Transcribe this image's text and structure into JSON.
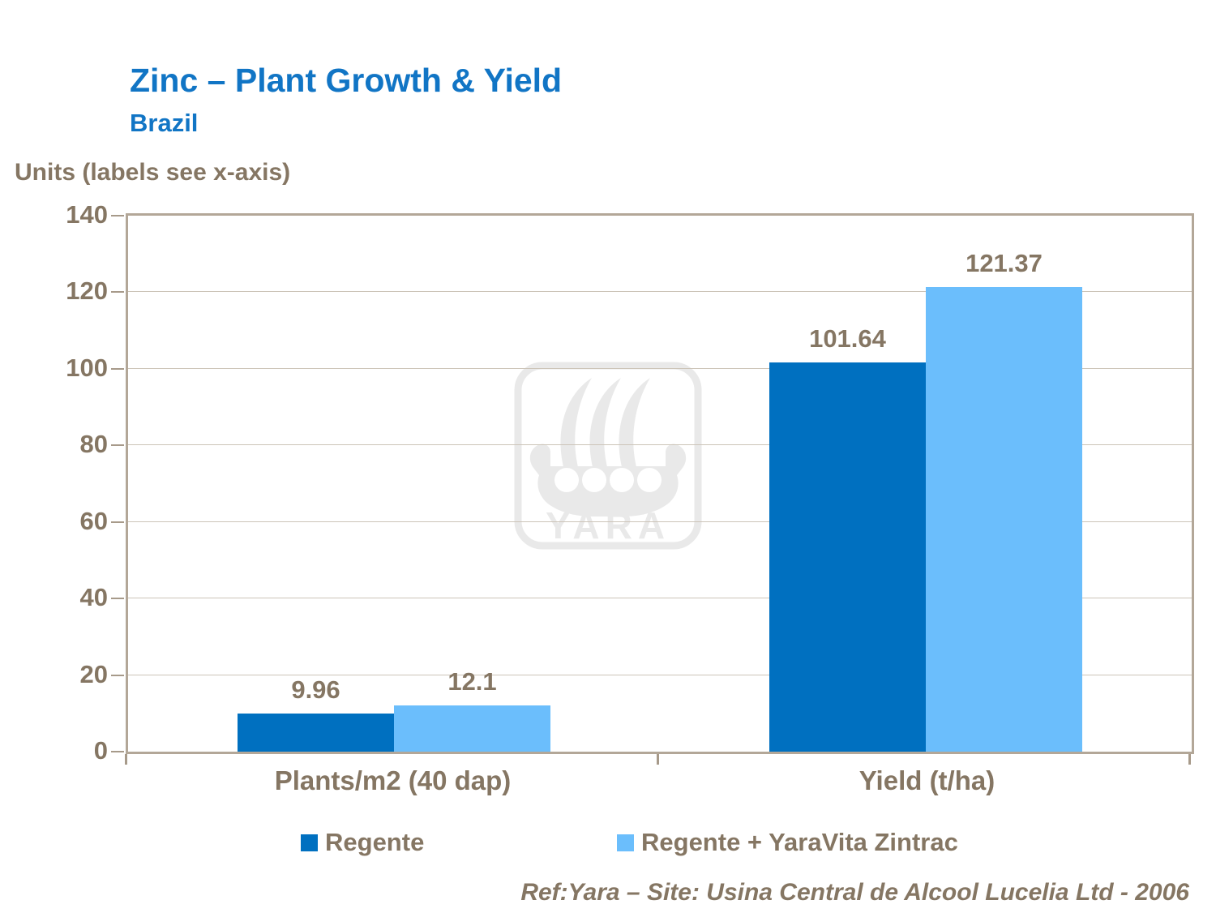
{
  "slide": {
    "title": "Zinc – Plant Growth & Yield",
    "subtitle": "Brazil",
    "reference": "Ref:Yara – Site: Usina Central de Alcool Lucelia Ltd - 2006"
  },
  "colors": {
    "title_blue": "#1175C5",
    "series_regente_blue": "#0070C0",
    "series_zintrac_light_blue": "#6BBEFC",
    "text_brown": "#857663",
    "plot_border_tan": "#B3A798",
    "gridline_tan": "#CCC4B8",
    "watermark_gray": "#E9E9E9"
  },
  "chart_data": {
    "type": "bar",
    "title": "Zinc – Plant Growth & Yield",
    "subtitle": "Brazil",
    "axis_title": "Units (labels see x-axis)",
    "categories": [
      "Plants/m2 (40 dap)",
      "Yield (t/ha)"
    ],
    "series": [
      {
        "name": "Regente",
        "color": "#0070C0",
        "values": [
          9.96,
          101.64
        ],
        "labels": [
          "9.96",
          "101.64"
        ]
      },
      {
        "name": "Regente + YaraVita Zintrac",
        "color": "#6BBEFC",
        "values": [
          12.1,
          121.37
        ],
        "labels": [
          "12.1",
          "121.37"
        ]
      }
    ],
    "ylim": [
      0,
      140
    ],
    "ytick_interval": 20,
    "yticks": [
      0,
      20,
      40,
      60,
      80,
      100,
      120,
      140
    ],
    "grid": true,
    "legend_position": "bottom"
  },
  "watermark": {
    "name": "yara-viking-ship-logo",
    "text": "YARA"
  }
}
